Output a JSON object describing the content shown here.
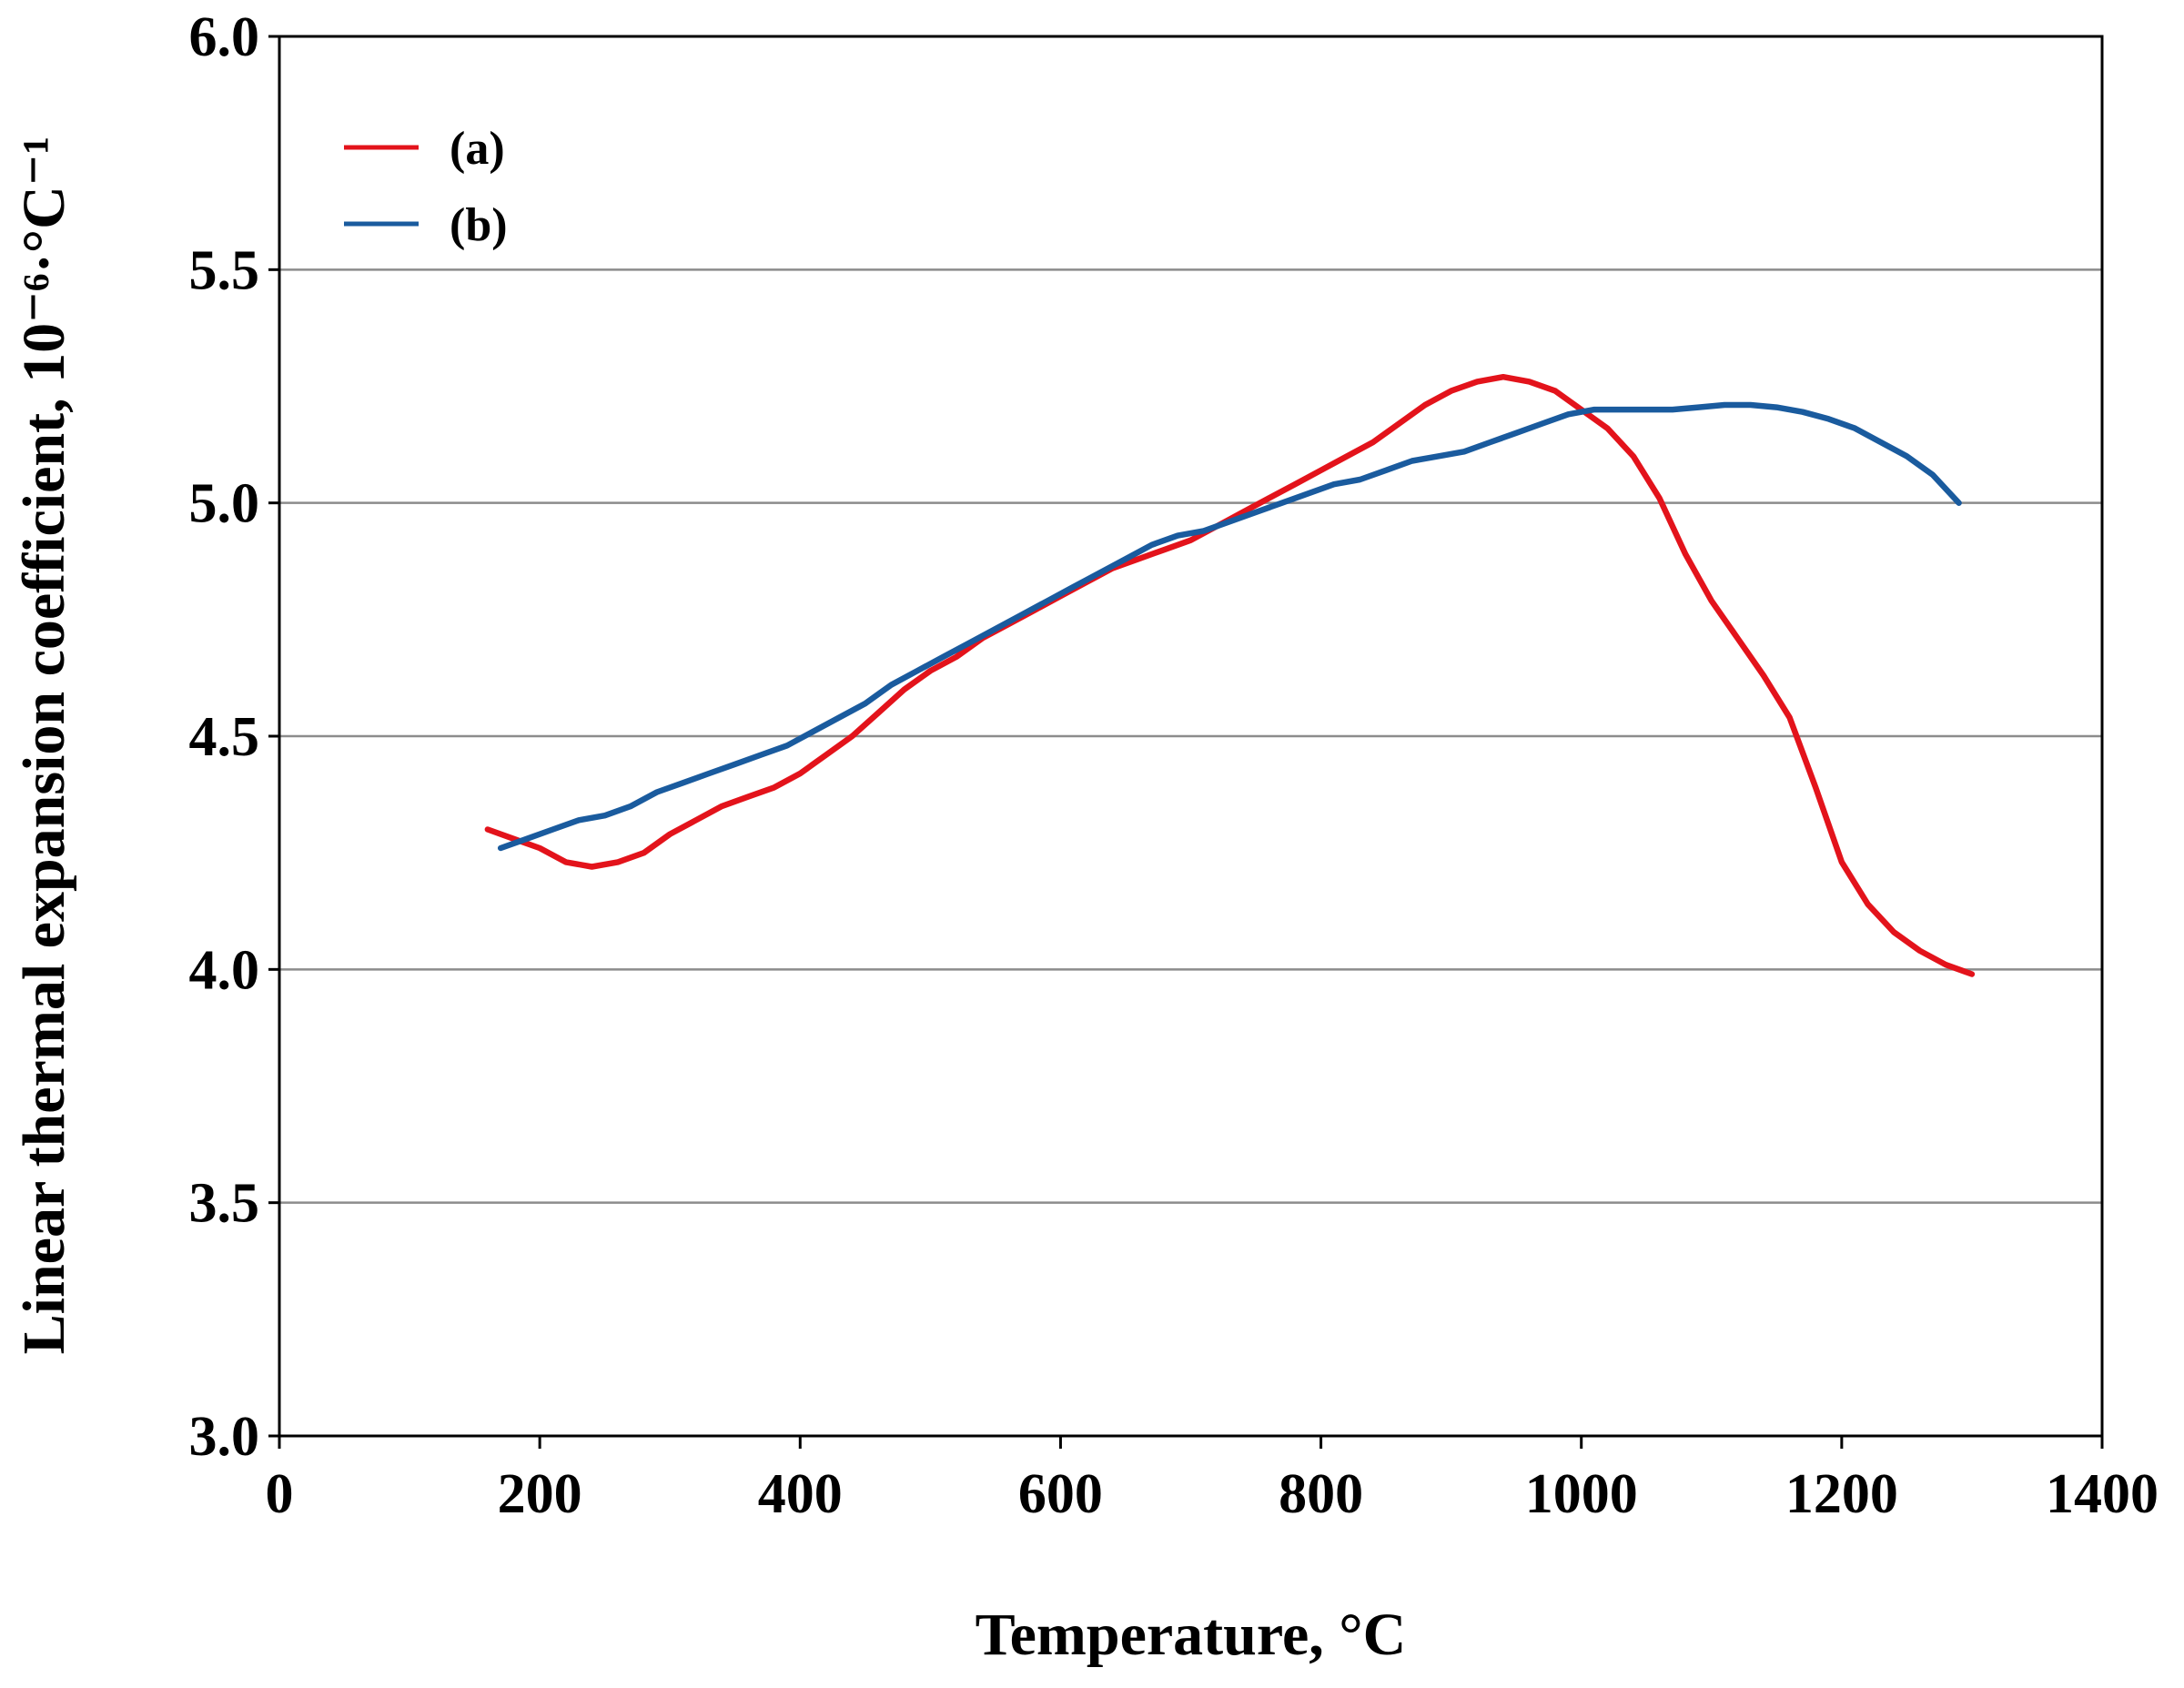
{
  "chart_data": {
    "type": "line",
    "title": "",
    "xlabel": "Temperature, °C",
    "ylabel": "Linear thermal expansion coefficient, 10⁻⁶·°C⁻¹",
    "xlim": [
      0,
      1400
    ],
    "ylim": [
      3.0,
      6.0
    ],
    "xticks": [
      0,
      200,
      400,
      600,
      800,
      1000,
      1200,
      1400
    ],
    "yticks": [
      3.0,
      3.5,
      4.0,
      4.5,
      5.0,
      5.5,
      6.0
    ],
    "ytick_labels": [
      "3.0",
      "3.5",
      "4.0",
      "4.5",
      "5.0",
      "5.5",
      "6.0"
    ],
    "grid": "horizontal",
    "legend": "top-left",
    "series": [
      {
        "name": "(a)",
        "color": "#e3131b",
        "x": [
          160,
          180,
          200,
          220,
          240,
          260,
          280,
          300,
          320,
          340,
          360,
          380,
          400,
          420,
          440,
          460,
          480,
          500,
          520,
          540,
          560,
          580,
          600,
          620,
          640,
          660,
          680,
          700,
          720,
          740,
          760,
          780,
          800,
          820,
          840,
          860,
          880,
          900,
          920,
          940,
          960,
          980,
          1000,
          1020,
          1040,
          1060,
          1080,
          1100,
          1120,
          1140,
          1160,
          1180,
          1200,
          1220,
          1240,
          1260,
          1280,
          1300
        ],
        "y": [
          4.3,
          4.28,
          4.26,
          4.23,
          4.22,
          4.23,
          4.25,
          4.29,
          4.32,
          4.35,
          4.37,
          4.39,
          4.42,
          4.46,
          4.5,
          4.55,
          4.6,
          4.64,
          4.67,
          4.71,
          4.74,
          4.77,
          4.8,
          4.83,
          4.86,
          4.88,
          4.9,
          4.92,
          4.95,
          4.98,
          5.01,
          5.04,
          5.07,
          5.1,
          5.13,
          5.17,
          5.21,
          5.24,
          5.26,
          5.27,
          5.26,
          5.24,
          5.2,
          5.16,
          5.1,
          5.01,
          4.89,
          4.79,
          4.71,
          4.63,
          4.54,
          4.39,
          4.23,
          4.14,
          4.08,
          4.04,
          4.01,
          3.99
        ]
      },
      {
        "name": "(b)",
        "color": "#1a5b9e",
        "x": [
          170,
          190,
          210,
          230,
          250,
          270,
          290,
          310,
          330,
          350,
          370,
          390,
          410,
          430,
          450,
          470,
          490,
          510,
          530,
          550,
          570,
          590,
          610,
          630,
          650,
          670,
          690,
          710,
          730,
          750,
          770,
          790,
          810,
          830,
          850,
          870,
          890,
          910,
          930,
          950,
          970,
          990,
          1010,
          1030,
          1050,
          1070,
          1090,
          1110,
          1130,
          1150,
          1170,
          1190,
          1210,
          1230,
          1250,
          1270,
          1290
        ],
        "y": [
          4.26,
          4.28,
          4.3,
          4.32,
          4.33,
          4.35,
          4.38,
          4.4,
          4.42,
          4.44,
          4.46,
          4.48,
          4.51,
          4.54,
          4.57,
          4.61,
          4.64,
          4.67,
          4.7,
          4.73,
          4.76,
          4.79,
          4.82,
          4.85,
          4.88,
          4.91,
          4.93,
          4.94,
          4.96,
          4.98,
          5.0,
          5.02,
          5.04,
          5.05,
          5.07,
          5.09,
          5.1,
          5.11,
          5.13,
          5.15,
          5.17,
          5.19,
          5.2,
          5.2,
          5.2,
          5.2,
          5.205,
          5.21,
          5.21,
          5.205,
          5.195,
          5.18,
          5.16,
          5.13,
          5.1,
          5.06,
          5.0
        ]
      }
    ]
  }
}
